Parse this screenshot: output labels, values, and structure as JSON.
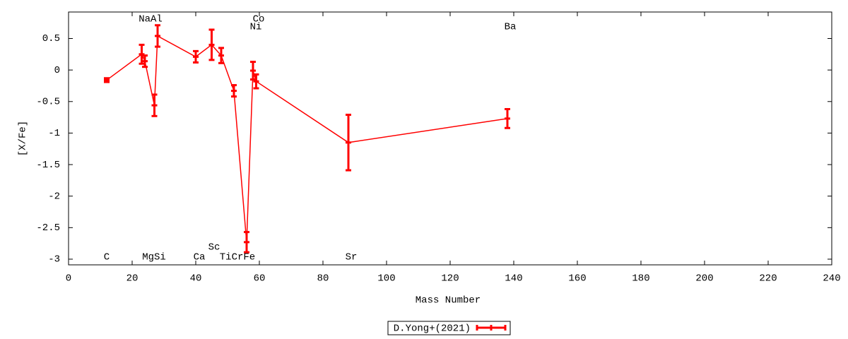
{
  "chart_data": {
    "type": "line",
    "xlabel": "Mass Number",
    "ylabel": "[X/Fe]",
    "x": [
      12,
      23,
      24,
      27,
      28,
      40,
      45,
      48,
      52,
      56,
      58,
      59,
      88,
      138
    ],
    "series": [
      {
        "name": "D.Yong+(2021)",
        "color": "#ff0000",
        "values": [
          -0.16,
          0.25,
          0.14,
          -0.56,
          0.54,
          0.21,
          0.4,
          0.23,
          -0.33,
          -2.73,
          -0.01,
          -0.18,
          -1.15,
          -0.77
        ],
        "errors": [
          0.03,
          0.15,
          0.09,
          0.17,
          0.17,
          0.09,
          0.24,
          0.12,
          0.09,
          0.16,
          0.14,
          0.11,
          0.44,
          0.15
        ]
      }
    ],
    "annotations": [
      "NaAl",
      "Co",
      "Ni",
      "Ba",
      "C",
      "MgSi",
      "Ca",
      "Sc",
      "TiCrFe",
      "Sr"
    ],
    "xlim": [
      0,
      240
    ],
    "xticks": [
      0,
      20,
      40,
      60,
      80,
      100,
      120,
      140,
      160,
      180,
      200,
      220,
      240
    ],
    "ylim": [
      -3.09,
      0.92
    ],
    "yticks": [
      0.5,
      0,
      -0.5,
      -1,
      -1.5,
      -2,
      -2.5,
      -3
    ],
    "grid": false,
    "legend": "below"
  }
}
